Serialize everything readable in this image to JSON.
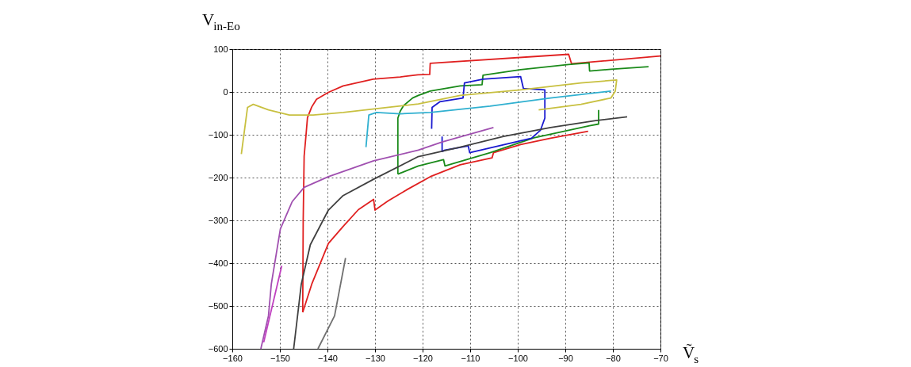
{
  "chart_data": {
    "type": "line",
    "xlabel": "Ṽ$_{s}$",
    "ylabel": "V$_{in-Eo}$",
    "xlim": [
      -160,
      -70
    ],
    "xticks": [
      -160,
      -150,
      -140,
      -130,
      -120,
      -110,
      -100,
      -90,
      -80,
      -70
    ],
    "ylim": [
      -600,
      100
    ],
    "yticks": [
      -600,
      -500,
      -400,
      -300,
      -200,
      -100,
      0,
      100
    ],
    "grid": true,
    "legend": false,
    "marker": "none",
    "line_style": "solid",
    "series": [
      {
        "color": "#e02020",
        "x": [
          -145.2,
          -145.1,
          -144.9,
          -144.5,
          -144.2,
          -143.3,
          -142.3,
          -139.8,
          -136.7,
          -130.4,
          -124.7,
          -121,
          -118.5,
          -118.4,
          -89.3,
          -88.7,
          -70
        ],
        "values": [
          -515,
          -300,
          -150,
          -100,
          -60,
          -35,
          -17,
          -1,
          14,
          30,
          35,
          40,
          41,
          67,
          88,
          66,
          84
        ]
      },
      {
        "color": "#e02020",
        "x": [
          -145.2,
          -143.3,
          -139.8,
          -136.7,
          -133.5,
          -130.3,
          -130,
          -127.2,
          -123.4,
          -118.4,
          -112.1,
          -105.4,
          -105.1,
          -99.4,
          -93.1,
          -85.2
        ],
        "values": [
          -515,
          -449,
          -354,
          -314,
          -275,
          -251,
          -276,
          -254,
          -229,
          -198,
          -170,
          -154,
          -142,
          -123,
          -108,
          -92
        ]
      },
      {
        "color": "#1a8a1a",
        "x": [
          -125.2,
          -125.2,
          -124.7,
          -124,
          -122.1,
          -120.9,
          -118.4,
          -112.1,
          -107.5,
          -107.3,
          -99.4,
          -89.3,
          -85,
          -84.9,
          -80.4,
          -72.5
        ],
        "values": [
          -192,
          -61,
          -45,
          -32,
          -14,
          -8,
          2,
          14,
          17,
          39,
          52,
          64,
          68,
          49,
          53,
          59
        ]
      },
      {
        "color": "#1a8a1a",
        "x": [
          -125.2,
          -120.9,
          -115.6,
          -115.3,
          -105.8,
          -96.6,
          -84.9,
          -83,
          -83
        ],
        "values": [
          -192,
          -173,
          -158,
          -173,
          -142,
          -107,
          -79,
          -75,
          -42
        ]
      },
      {
        "color": "#1a1ad0",
        "x": [
          -118.1,
          -118,
          -116.4,
          -111.5,
          -111.2,
          -107.3,
          -99.4,
          -98.8,
          -94.3,
          -94.3,
          -95.2,
          -97.1,
          -102.8,
          -110.1,
          -110.4,
          -115.3,
          -115.9,
          -115.9
        ],
        "values": [
          -86,
          -36,
          -23,
          -14,
          21,
          30,
          36,
          8,
          5,
          -61,
          -89,
          -108,
          -123,
          -142,
          -126,
          -136,
          -139,
          -104
        ]
      },
      {
        "color": "#c8c040",
        "x": [
          -158.1,
          -156.8,
          -155.6,
          -152.4,
          -148,
          -143,
          -136.7,
          -127.2,
          -120.9,
          -112.1,
          -99.4,
          -86.7,
          -79.2,
          -79.5,
          -80.4,
          -86.7,
          -95.6
        ],
        "values": [
          -145,
          -36,
          -29,
          -42,
          -54,
          -54,
          -48,
          -36,
          -28,
          -8,
          5,
          21,
          28,
          2,
          -14,
          -29,
          -42
        ]
      },
      {
        "color": "#30b0d0",
        "x": [
          -131.9,
          -131.3,
          -129.7,
          -124.7,
          -118.4,
          -105.8,
          -93.1,
          -80.4
        ],
        "values": [
          -129,
          -54,
          -48,
          -51,
          -48,
          -33,
          -14,
          2
        ]
      },
      {
        "color": "#a050b0",
        "x": [
          -154,
          -152.4,
          -151.8,
          -149.9,
          -147.4,
          -144.9,
          -139.8,
          -130.3,
          -120.9,
          -115.9,
          -105.1
        ],
        "values": [
          -600,
          -523,
          -449,
          -320,
          -256,
          -223,
          -198,
          -161,
          -136,
          -117,
          -83
        ]
      },
      {
        "color": "#c040c0",
        "x": [
          -153.4,
          -149.6
        ],
        "values": [
          -585,
          -406
        ]
      },
      {
        "color": "#404040",
        "x": [
          -147.1,
          -145.5,
          -143.6,
          -139.8,
          -136.7,
          -130.3,
          -120.9,
          -112.1,
          -103,
          -93.1,
          -83.6,
          -77
        ],
        "values": [
          -600,
          -449,
          -357,
          -276,
          -242,
          -204,
          -151,
          -129,
          -104,
          -83,
          -67,
          -58
        ]
      },
      {
        "color": "#707070",
        "x": [
          -142,
          -138.5,
          -136.2
        ],
        "values": [
          -600,
          -523,
          -388
        ]
      }
    ]
  }
}
